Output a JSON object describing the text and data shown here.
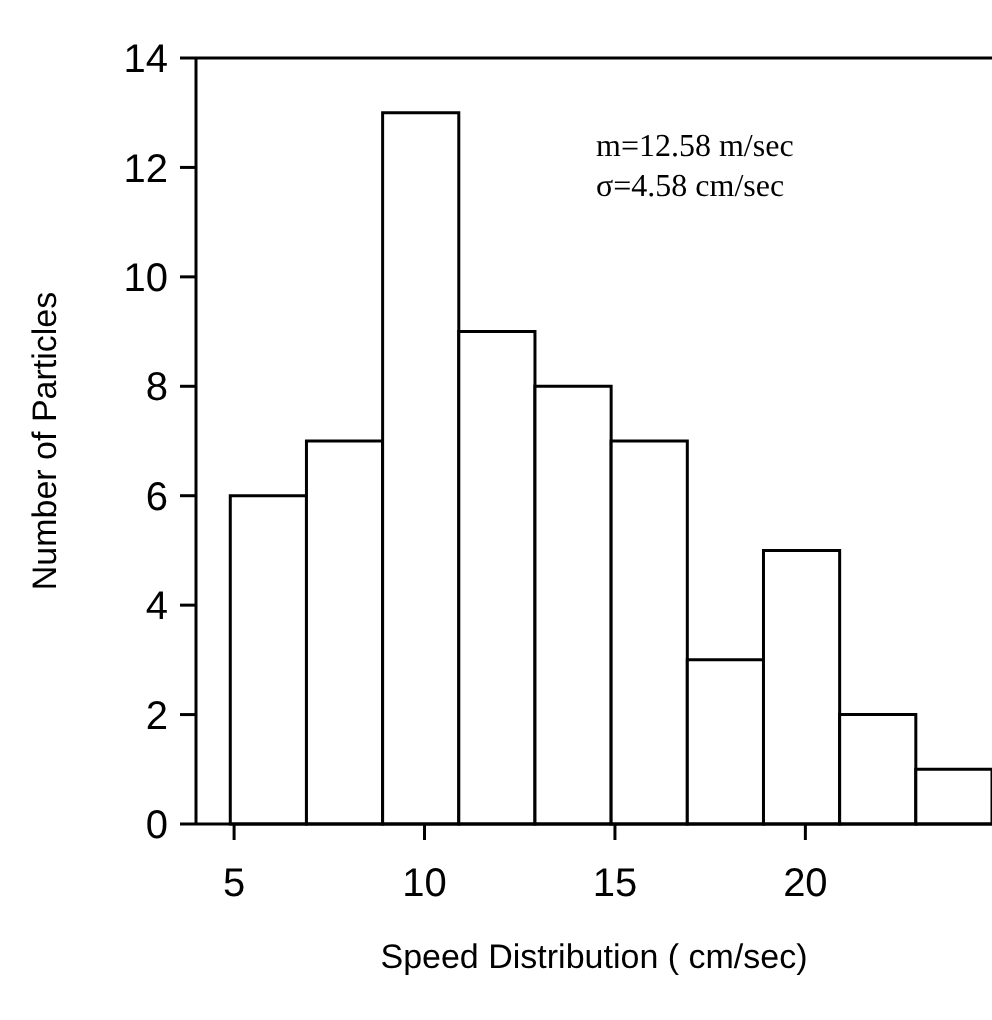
{
  "chart_data": {
    "type": "histogram",
    "xlabel": "Speed Distribution  ( cm/sec)",
    "ylabel": "Number of Particles",
    "annotations": [
      "m=12.58 m/sec",
      "σ=4.58 cm/sec"
    ],
    "bins": [
      4.9,
      6.9,
      8.9,
      10.9,
      12.9,
      14.9,
      16.9,
      18.9,
      20.9,
      22.9,
      24.9
    ],
    "values": [
      6,
      7,
      13,
      9,
      8,
      7,
      3,
      5,
      2,
      1
    ],
    "color": "#ffffff",
    "xlim": [
      4,
      24.9
    ],
    "xticks": [
      5,
      10,
      15,
      20
    ],
    "ylim": [
      0,
      14
    ],
    "yticks": [
      0,
      2,
      4,
      6,
      8,
      10,
      12,
      14
    ]
  }
}
